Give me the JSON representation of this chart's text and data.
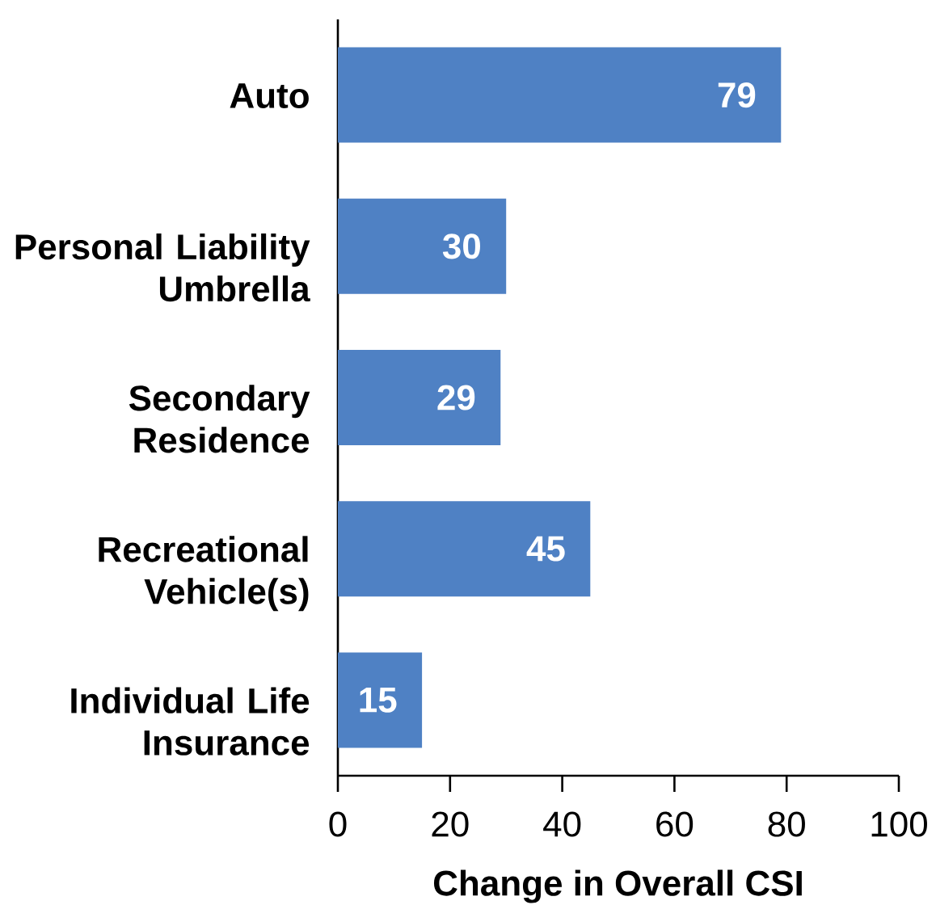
{
  "chart_data": {
    "type": "bar",
    "orientation": "horizontal",
    "categories": [
      "Auto",
      "Personal Liability Umbrella",
      "Secondary Residence",
      "Recreational Vehicle(s)",
      "Individual Life Insurance"
    ],
    "values": [
      79,
      30,
      29,
      45,
      15
    ],
    "color": "#4f81c4",
    "xlabel": "Change in Overall CSI",
    "xlim": [
      0,
      100
    ],
    "xticks": [
      0,
      20,
      40,
      60,
      80,
      100
    ],
    "data_labels": true
  }
}
